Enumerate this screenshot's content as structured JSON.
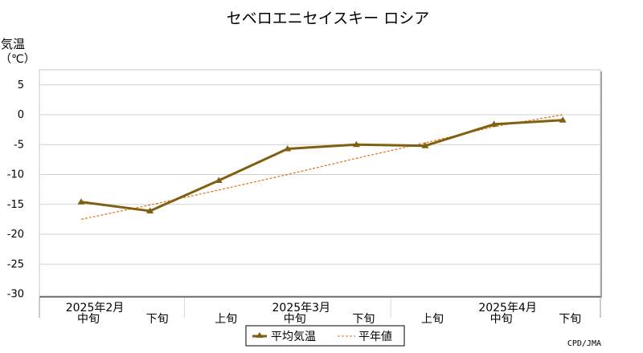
{
  "chart_data": {
    "type": "line",
    "title": "セベロエニセイスキー ロシア",
    "ylabel_line1": "気温",
    "ylabel_line2": "（℃）",
    "ylim": [
      -30,
      7
    ],
    "yticks": [
      5,
      0,
      -5,
      -10,
      -15,
      -20,
      -25,
      -30
    ],
    "grid": true,
    "categories": [
      "中旬",
      "下旬",
      "上旬",
      "中旬",
      "下旬",
      "上旬",
      "中旬",
      "下旬"
    ],
    "month_labels": [
      {
        "label": "2025年2月",
        "index": 0
      },
      {
        "label": "2025年3月",
        "index": 3
      },
      {
        "label": "2025年4月",
        "index": 6
      }
    ],
    "series": [
      {
        "name": "平均気温",
        "color": "#806010",
        "style": "solid",
        "values": [
          -14.6,
          -16.1,
          -11.0,
          -5.7,
          -5.0,
          -5.2,
          -1.6,
          -0.9
        ]
      },
      {
        "name": "平年値",
        "color": "#e07010",
        "style": "dashed",
        "values": [
          -17.5,
          -15.1,
          -12.6,
          -10.0,
          -7.3,
          -4.7,
          -2.0,
          0.0
        ]
      }
    ],
    "legend_position": "bottom-center",
    "credit": "CPD/JMA"
  }
}
